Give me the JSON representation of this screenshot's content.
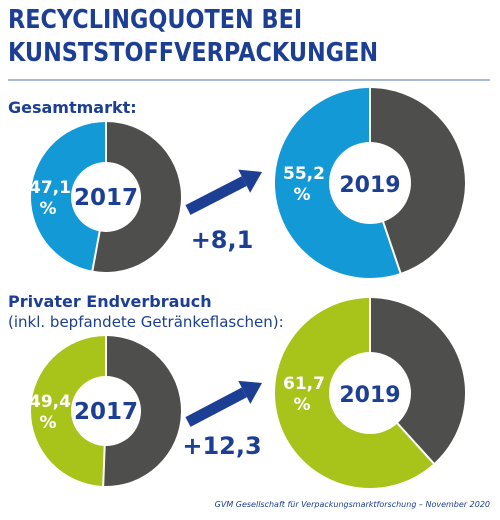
{
  "title_line1": "RECYCLINGQUOTEN BEI",
  "title_line2": "KUNSTSTOFFVERPACKUNGEN",
  "source": "GVM Gesellschaft für Verpackungsmarktforschung – November 2020",
  "colors": {
    "navy": "#1c3f94",
    "blue": "#1399d5",
    "green": "#a8c31a",
    "gray": "#4e4e4c",
    "rule": "#a9b9da"
  },
  "chart_data": [
    {
      "type": "pie",
      "title": "Gesamtmarkt:",
      "subtitle": "",
      "color": "#1399d5",
      "change": "+8,1",
      "donuts": [
        {
          "year": "2017",
          "value": 47.1,
          "label": "47,1",
          "unit": "%"
        },
        {
          "year": "2019",
          "value": 55.2,
          "label": "55,2",
          "unit": "%"
        }
      ]
    },
    {
      "type": "pie",
      "title": "Privater Endverbrauch",
      "subtitle": "(inkl. bepfandete Getränkeflaschen):",
      "color": "#a8c31a",
      "change": "+12,3",
      "donuts": [
        {
          "year": "2017",
          "value": 49.4,
          "label": "49,4",
          "unit": "%"
        },
        {
          "year": "2019",
          "value": 61.7,
          "label": "61,7",
          "unit": "%"
        }
      ]
    }
  ]
}
